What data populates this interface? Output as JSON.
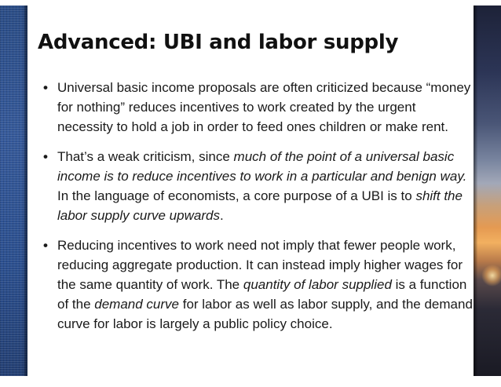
{
  "slide": {
    "title": "Advanced: UBI and labor supply",
    "bullets": [
      {
        "segments": [
          {
            "text": "Universal basic income proposals are often criticized because “money for nothing” reduces incentives to work created by the urgent necessity to hold a job in order to feed ones children or make rent."
          }
        ]
      },
      {
        "segments": [
          {
            "text": "That’s a weak criticism, since "
          },
          {
            "text": "much of the point of a universal basic income is to reduce incentives to work in a particular and benign way."
          },
          {
            "text": " In the language of economists, a core purpose of a UBI is to "
          },
          {
            "text": "shift the labor supply curve upwards"
          },
          {
            "text": "."
          }
        ]
      },
      {
        "segments": [
          {
            "text": "Reducing incentives to work need not imply that fewer people work, reducing aggregate production. It can instead imply higher wages for the same quantity of work. The "
          },
          {
            "text": "quantity of labor supplied"
          },
          {
            "text": " is a function of the "
          },
          {
            "text": "demand curve"
          },
          {
            "text": " for labor as well as labor supply, and the demand curve for labor is largely a public policy choice."
          }
        ]
      }
    ]
  },
  "colors": {
    "left_band": "#2b4f8f",
    "sunset_orange": "#e59a52",
    "text": "#1a1a1a"
  }
}
